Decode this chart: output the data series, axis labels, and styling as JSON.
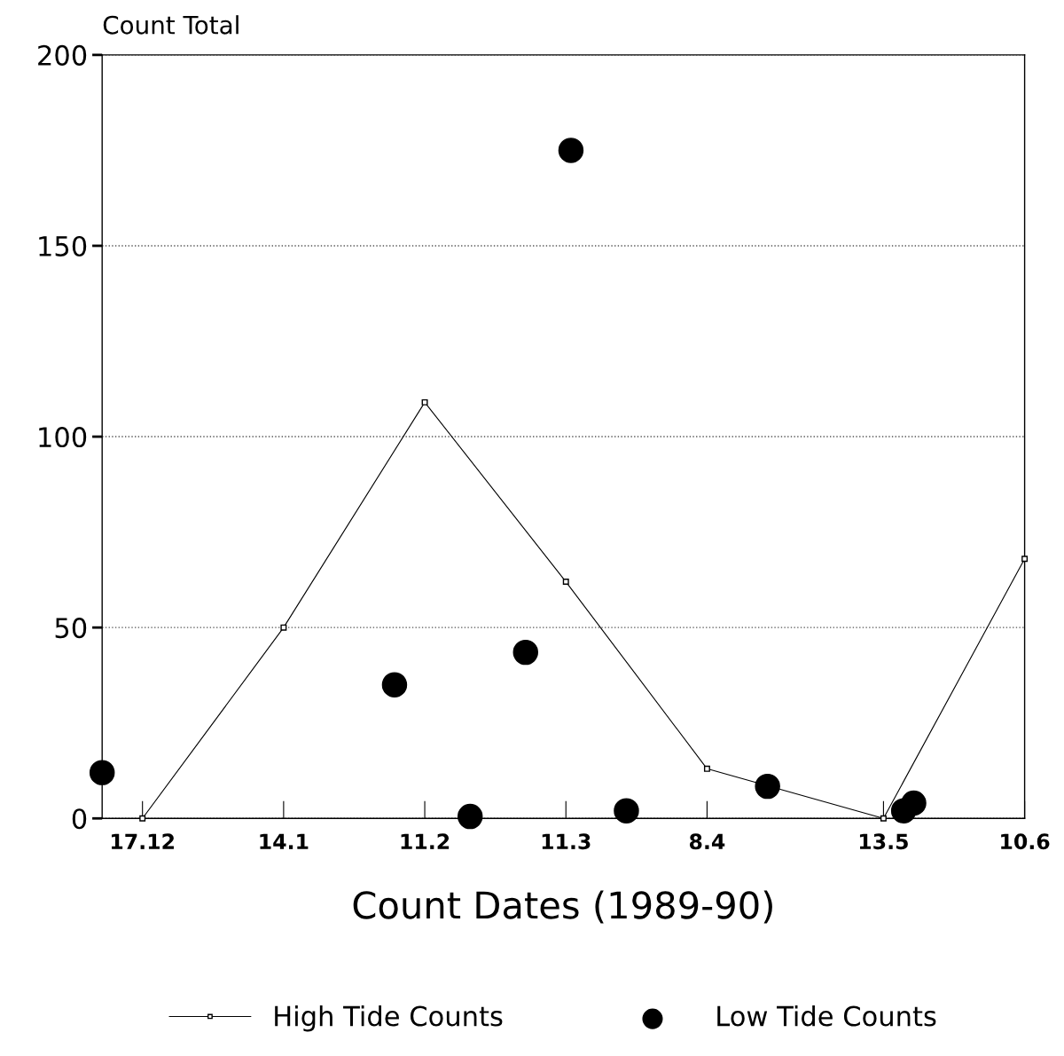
{
  "chart_data": {
    "type": "line",
    "ylabel": "Count Total",
    "xlabel": "Count Dates (1989-90)",
    "xlim": [
      "1989-12-09",
      "1990-06-10"
    ],
    "xticks": [
      {
        "value": "1989-12-17",
        "label": "17.12"
      },
      {
        "value": "1990-01-14",
        "label": "14.1"
      },
      {
        "value": "1990-02-11",
        "label": "11.2"
      },
      {
        "value": "1990-03-11",
        "label": "11.3"
      },
      {
        "value": "1990-04-08",
        "label": "8.4"
      },
      {
        "value": "1990-05-13",
        "label": "13.5"
      },
      {
        "value": "1990-06-10",
        "label": "10.6"
      }
    ],
    "ylim": [
      0,
      200
    ],
    "yticks": [
      0,
      50,
      100,
      150,
      200
    ],
    "grid": "y",
    "legend": "bottom",
    "series": [
      {
        "name": "High Tide Counts",
        "color": "#000000",
        "marker": "square",
        "x": [
          "1989-12-17",
          "1990-01-14",
          "1990-02-11",
          "1990-03-11",
          "1990-04-08",
          "1990-05-13",
          "1990-06-10"
        ],
        "values": [
          0,
          50,
          109,
          62,
          13,
          0,
          68
        ]
      },
      {
        "name": "Low Tide Counts",
        "type": "scatter",
        "color": "#000000",
        "marker": "circle",
        "x": [
          "1989-12-09",
          "1990-02-05",
          "1990-02-20",
          "1990-03-03",
          "1990-03-12",
          "1990-03-23",
          "1990-04-20",
          "1990-05-17",
          "1990-05-19"
        ],
        "values": [
          12,
          35,
          0.5,
          43.5,
          175,
          2,
          8.4,
          2,
          4
        ]
      }
    ]
  }
}
